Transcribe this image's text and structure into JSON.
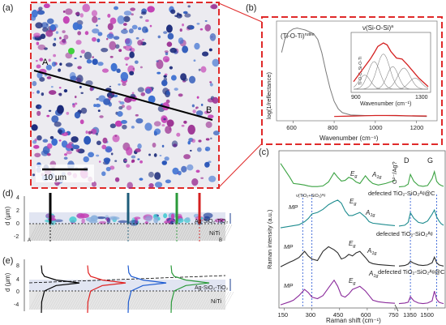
{
  "panels": {
    "a": {
      "tag": "(a)",
      "label_A": "A",
      "label_B": "B",
      "scale_label": "10 μm",
      "scan_profile": {
        "from": "A",
        "to": "B"
      },
      "map_colors": {
        "background": "#ecebf0",
        "dots": [
          "#2b57b9",
          "#3b6fd1",
          "#9b2f92",
          "#c33fb4",
          "#1b2a7a"
        ],
        "marker": "#3fd13b"
      }
    },
    "b": {
      "tag": "(b)",
      "ylabel": "log(1/reflectance)",
      "xlabel": "Wavenumber (cm⁻¹)",
      "ticks_x": [
        "600",
        "800",
        "1000",
        "1200"
      ],
      "label_tio": "(Ti-O-Ti)",
      "label_tio_sup": "rutile",
      "inset": {
        "label_nu": "ν(Si-O-Si)",
        "label_nu_sup": "a",
        "label_side": "Ti-O-C, Si-O-Ti",
        "xlabel": "Wavenumber (cm⁻¹)",
        "ticks_x": [
          "900",
          "1300"
        ]
      }
    },
    "c": {
      "tag": "(c)",
      "ylabel": "Raman intensity (a.u.)",
      "xlabel": "Raman shift (cm⁻¹)",
      "ticks_x": [
        "150",
        "300",
        "450",
        "600",
        "750",
        "1350",
        "1500"
      ],
      "peaks": {
        "eg": "E",
        "eg_sub": "g",
        "a1g": "A",
        "a1g_sub": "1g",
        "oq": "O²⁻/Ag?",
        "d": "D",
        "g": "G",
        "mp": "MP"
      },
      "inset_label": "ν(TiO₂+SiO₂)ᴬᵍ",
      "colors": {
        "green": "#3aa241",
        "teal": "#1e8c8f",
        "black": "#2a2a2a",
        "purple": "#8a2a9b"
      },
      "spectra_labels": [
        "defected TiO₂-SiO₂ᴬᵍ@C",
        "defected TiO₂-SiO₂ᴬᵍ",
        "defected TiO₂-SiO₂ᴬᵍ@C"
      ]
    },
    "d": {
      "tag": "(d)",
      "ylabel": "d (μm)",
      "ticks_y": [
        "4",
        "2",
        "0",
        "-2"
      ],
      "layer_label": "Ag-SiO₂-TiO₂",
      "substrate": "NiTi",
      "corner_a": "A",
      "corner_b": "B",
      "line_colors": [
        "#000000",
        "#1d5c7a",
        "#2a9a3a",
        "#d42020"
      ]
    },
    "e": {
      "tag": "(e)",
      "ylabel": "d (μm)",
      "ticks_y": [
        "8",
        "4",
        "0",
        "-4"
      ],
      "layer_label": "Ag-SiO₂-TiO₂",
      "substrate": "NiTi",
      "profile_colors": [
        "#000000",
        "#e02020",
        "#1d5bd1",
        "#2a9a3a"
      ]
    }
  },
  "chart_data": [
    {
      "type": "heatmap",
      "panel": "a",
      "description_ref": "panels.a"
    },
    {
      "type": "line",
      "panel": "b",
      "xlabel": "Wavenumber (cm⁻¹)",
      "ylabel": "log(1/reflectance)",
      "xlim": [
        520,
        1300
      ],
      "series": [
        {
          "color": "#7a7a7a",
          "x": [
            545,
            560,
            580,
            600,
            620,
            640,
            660,
            680,
            700,
            720,
            740,
            760,
            780,
            800,
            820,
            840,
            880,
            950,
            1000,
            1050,
            1100,
            1150,
            1200,
            1250
          ],
          "y": [
            0.7,
            0.84,
            0.92,
            0.95,
            0.96,
            0.95,
            0.94,
            0.92,
            0.9,
            0.84,
            0.7,
            0.5,
            0.32,
            0.18,
            0.1,
            0.06,
            0.035,
            0.03,
            0.03,
            0.03,
            0.028,
            0.025,
            0.022,
            0.02
          ]
        },
        {
          "color": "#d42020",
          "x": [
            800,
            850,
            900,
            950,
            1000,
            1050,
            1100,
            1150,
            1200,
            1250
          ],
          "y": [
            0.02,
            0.022,
            0.025,
            0.028,
            0.03,
            0.03,
            0.03,
            0.028,
            0.026,
            0.025
          ]
        }
      ],
      "inset": {
        "xlim": [
          900,
          1300
        ],
        "series": [
          {
            "color": "#d42020",
            "x": [
              900,
              930,
              960,
              990,
              1010,
              1030,
              1060,
              1080,
              1100,
              1130,
              1160,
              1190,
              1220,
              1250,
              1280,
              1300
            ],
            "y": [
              0.15,
              0.3,
              0.45,
              0.6,
              0.72,
              0.85,
              0.92,
              0.88,
              0.75,
              0.62,
              0.6,
              0.48,
              0.35,
              0.22,
              0.12,
              0.05
            ]
          }
        ]
      }
    },
    {
      "type": "line",
      "panel": "c",
      "xlabel": "Raman shift (cm⁻¹)",
      "ylabel": "Raman intensity (a.u.)",
      "x": [
        130,
        180,
        200,
        230,
        260,
        280,
        300,
        330,
        360,
        390,
        420,
        440,
        460,
        480,
        500,
        520,
        540,
        560,
        590,
        610,
        630,
        660,
        700,
        750
      ],
      "x_right": [
        1250,
        1300,
        1330,
        1350,
        1380,
        1420,
        1460,
        1500,
        1540,
        1560,
        1580,
        1600,
        1620,
        1640
      ],
      "series": [
        {
          "color": "#3aa241",
          "y": [
            0.85,
            0.4,
            0.2,
            0.18,
            0.15,
            0.12,
            0.1,
            0.1,
            0.12,
            0.25,
            0.55,
            0.4,
            0.28,
            0.3,
            0.4,
            0.35,
            0.25,
            0.2,
            0.45,
            0.3,
            0.2,
            0.15,
            0.2,
            0.3
          ],
          "y_right": [
            0.1,
            0.12,
            0.2,
            0.55,
            0.3,
            0.15,
            0.12,
            0.15,
            0.4,
            0.65,
            0.3,
            0.2,
            0.15,
            0.12
          ]
        },
        {
          "color": "#1e8c8f",
          "y": [
            0.05,
            0.1,
            0.12,
            0.15,
            0.25,
            0.35,
            0.5,
            0.55,
            0.65,
            0.8,
            0.9,
            0.95,
            0.85,
            0.6,
            0.45,
            0.45,
            0.5,
            0.55,
            0.4,
            0.25,
            0.2,
            0.18,
            0.15,
            0.12
          ],
          "y_right": [
            0.12,
            0.15,
            0.25,
            0.6,
            0.4,
            0.25,
            0.22,
            0.3,
            0.55,
            0.7,
            0.45,
            0.3,
            0.2,
            0.15
          ]
        },
        {
          "color": "#2a2a2a",
          "y": [
            0.05,
            0.2,
            0.25,
            0.35,
            0.55,
            0.4,
            0.3,
            0.25,
            0.55,
            0.7,
            0.6,
            0.5,
            0.3,
            0.35,
            0.45,
            0.4,
            0.5,
            0.55,
            0.35,
            0.2,
            0.15,
            0.12,
            0.1,
            0.08
          ],
          "y_right": [
            0.08,
            0.1,
            0.15,
            0.25,
            0.18,
            0.12,
            0.1,
            0.12,
            0.2,
            0.4,
            0.2,
            0.12,
            0.1,
            0.08
          ]
        },
        {
          "color": "#8a2a9b",
          "y": [
            0.05,
            0.15,
            0.2,
            0.35,
            0.55,
            0.45,
            0.3,
            0.25,
            0.35,
            0.6,
            0.85,
            0.65,
            0.35,
            0.3,
            0.4,
            0.55,
            0.6,
            0.65,
            0.5,
            0.35,
            0.2,
            0.15,
            0.12,
            0.1
          ],
          "y_right": [
            0.1,
            0.12,
            0.15,
            0.35,
            0.2,
            0.12,
            0.1,
            0.12,
            0.2,
            0.55,
            0.25,
            0.15,
            0.12,
            0.1
          ]
        }
      ]
    },
    {
      "type": "line",
      "panel": "e",
      "ylabel": "d (μm)",
      "ylim": [
        -6,
        8
      ],
      "series": [
        {
          "color": "#000000",
          "x": [
            0.02,
            0.04,
            0.1,
            0.4,
            1.0,
            0.4,
            0.1,
            0.03,
            0.02
          ],
          "y": [
            7,
            5,
            4,
            3,
            2.2,
            1.5,
            0,
            -3,
            -6
          ]
        },
        {
          "color": "#e02020",
          "x": [
            0.02,
            0.04,
            0.1,
            0.4,
            1.0,
            0.4,
            0.1,
            0.03,
            0.02
          ],
          "y": [
            7,
            5,
            4,
            3,
            2.2,
            1.5,
            0,
            -3,
            -6
          ]
        },
        {
          "color": "#1d5bd1",
          "x": [
            0.02,
            0.04,
            0.1,
            0.4,
            1.0,
            0.4,
            0.1,
            0.03,
            0.02
          ],
          "y": [
            7,
            5,
            4,
            3,
            2.2,
            1.5,
            0,
            -3,
            -6
          ]
        },
        {
          "color": "#2a9a3a",
          "x": [
            0.02,
            0.04,
            0.1,
            0.4,
            1.0,
            0.4,
            0.1,
            0.03,
            0.02
          ],
          "y": [
            7,
            5,
            4,
            3,
            2.2,
            1.5,
            0,
            -3,
            -6
          ]
        }
      ]
    }
  ]
}
